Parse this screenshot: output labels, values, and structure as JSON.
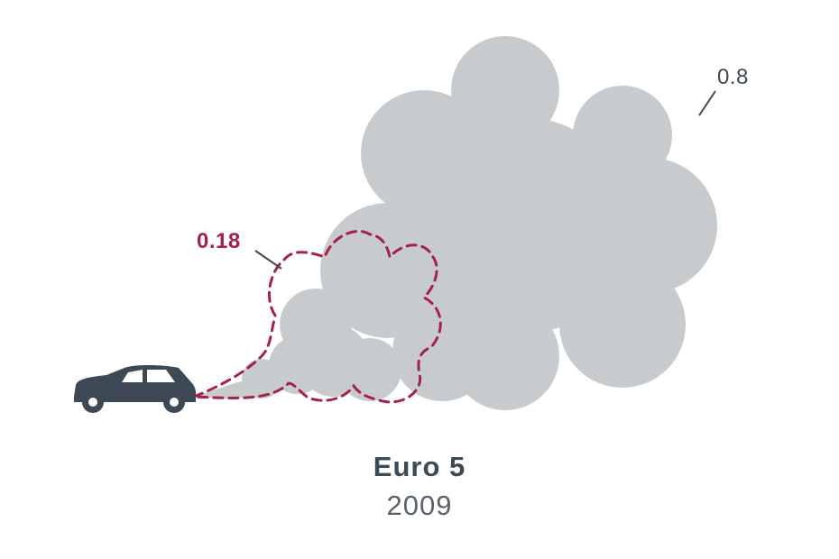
{
  "labels": {
    "large_cloud_value": "0.8",
    "small_cloud_value": "0.18"
  },
  "caption": {
    "title": "Euro 5",
    "year": "2009"
  },
  "colors": {
    "cloud_fill": "#c8cbce",
    "accent": "#a3204f",
    "car": "#3d4a55",
    "text_dark": "#3d4a55",
    "text_gray": "#5a636b",
    "leader_line": "#3d4a55"
  }
}
